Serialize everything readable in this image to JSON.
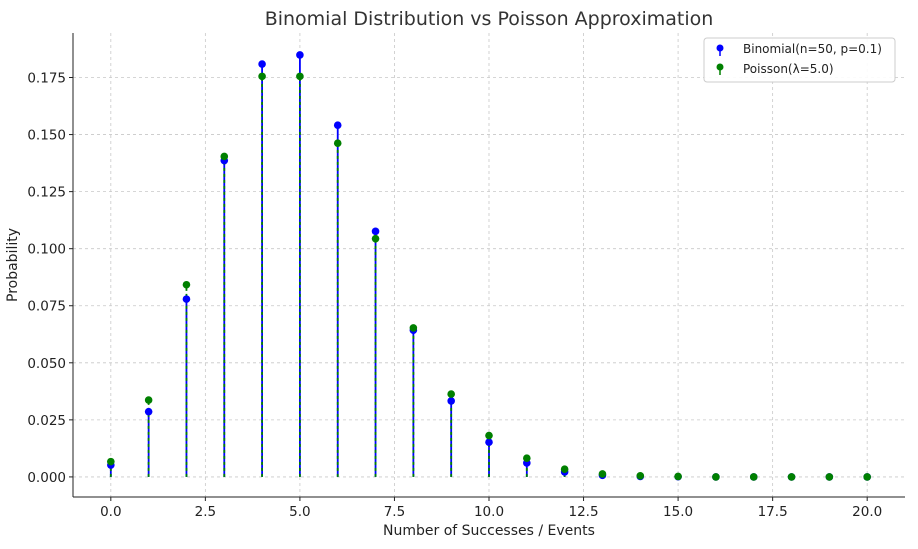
{
  "chart_data": {
    "type": "scatter",
    "style": "stem",
    "title": "Binomial Distribution vs Poisson Approximation",
    "xlabel": "Number of Successes / Events",
    "ylabel": "Probability",
    "xlim": [
      -1.0,
      21.0
    ],
    "ylim": [
      -0.0088,
      0.1945
    ],
    "xticks": [
      0.0,
      2.5,
      5.0,
      7.5,
      10.0,
      12.5,
      15.0,
      17.5,
      20.0
    ],
    "xtick_labels": [
      "0.0",
      "2.5",
      "5.0",
      "7.5",
      "10.0",
      "12.5",
      "15.0",
      "17.5",
      "20.0"
    ],
    "yticks": [
      0.0,
      0.025,
      0.05,
      0.075,
      0.1,
      0.125,
      0.15,
      0.175
    ],
    "ytick_labels": [
      "0.000",
      "0.025",
      "0.050",
      "0.075",
      "0.100",
      "0.125",
      "0.150",
      "0.175"
    ],
    "grid": true,
    "legend_position": "top-right",
    "x": [
      0,
      1,
      2,
      3,
      4,
      5,
      6,
      7,
      8,
      9,
      10,
      11,
      12,
      13,
      14,
      15,
      16,
      17,
      18,
      19,
      20
    ],
    "series": [
      {
        "name": "Binomial(n=50, p=0.1)",
        "color": "#0000ff",
        "values": [
          0.0052,
          0.0286,
          0.0779,
          0.1386,
          0.1809,
          0.1849,
          0.1541,
          0.1076,
          0.0643,
          0.0333,
          0.0152,
          0.0061,
          0.0022,
          0.0007,
          0.0002,
          0.0001,
          0.0,
          0.0,
          0.0,
          0.0,
          0.0
        ]
      },
      {
        "name": "Poisson(λ=5.0)",
        "color": "#008000",
        "values": [
          0.0067,
          0.0337,
          0.0842,
          0.1404,
          0.1755,
          0.1755,
          0.1462,
          0.1044,
          0.0653,
          0.0363,
          0.0181,
          0.0082,
          0.0034,
          0.0013,
          0.0005,
          0.0002,
          0.0,
          0.0,
          0.0,
          0.0,
          0.0
        ]
      }
    ]
  }
}
